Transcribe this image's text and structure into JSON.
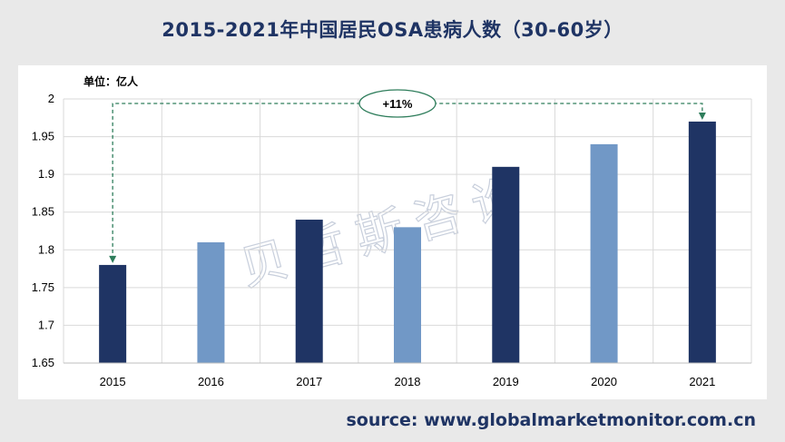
{
  "title": "2015-2021年中国居民OSA患病人数（30-60岁）",
  "unit_label": "单位：亿人",
  "source": "source: www.globalmarketmonitor.com.cn",
  "watermark": "贝哲斯咨询",
  "chart_data": {
    "type": "bar",
    "categories": [
      "2015",
      "2016",
      "2017",
      "2018",
      "2019",
      "2020",
      "2021"
    ],
    "values": [
      1.78,
      1.81,
      1.84,
      1.83,
      1.91,
      1.94,
      1.97
    ],
    "bar_colors": [
      "#1f3464",
      "#7198c6",
      "#1f3464",
      "#7198c6",
      "#1f3464",
      "#7198c6",
      "#1f3464"
    ],
    "ylim": [
      1.65,
      2.0
    ],
    "yticks": [
      "1.65",
      "1.7",
      "1.75",
      "1.8",
      "1.85",
      "1.9",
      "1.95",
      "2"
    ],
    "grid": true,
    "annotation": {
      "label": "+11%",
      "from": "2015",
      "to": "2021",
      "color": "#2e7d5b"
    }
  }
}
